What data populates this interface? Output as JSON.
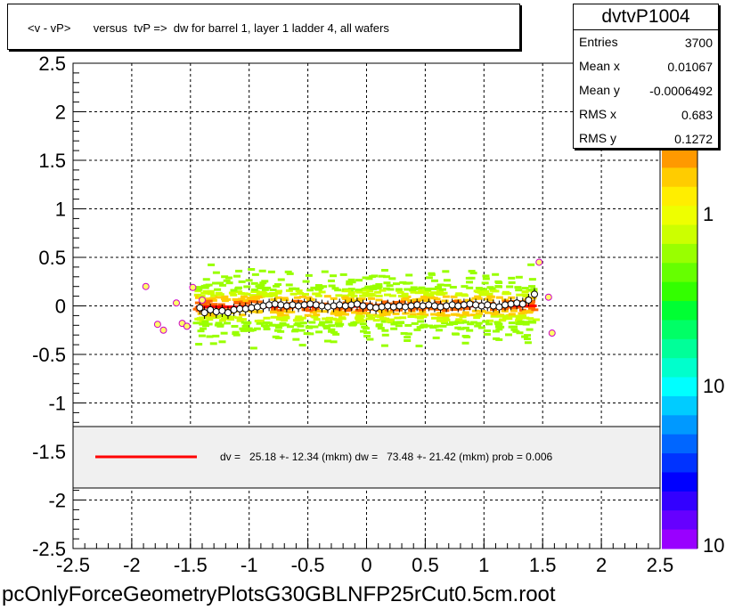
{
  "title": "<v - vP>       versus  tvP =>  dw for barrel 1, layer 1 ladder 4, all wafers",
  "stats": {
    "name": "dvtvP1004",
    "rows": [
      {
        "key": "Entries",
        "value": "3700"
      },
      {
        "key": "Mean x",
        "value": "0.01067"
      },
      {
        "key": "Mean y",
        "value": "-0.0006492"
      },
      {
        "key": "RMS x",
        "value": "0.683"
      },
      {
        "key": "RMS y",
        "value": "0.1272"
      }
    ]
  },
  "legend": {
    "text": "dv =   25.18 +- 12.34 (mkm) dw =   73.48 +- 21.42 (mkm) prob = 0.006",
    "line_color": "#ff0000"
  },
  "footer": "pcOnlyForceGeometryPlotsG30GBLNFP25rCut0.5cm.root",
  "colorbar": {
    "labels": [
      "1",
      "10",
      "10"
    ],
    "colors": [
      "#ff9900",
      "#ffcc00",
      "#ffee00",
      "#eeff00",
      "#ccff00",
      "#99ff00",
      "#66ff00",
      "#33ff00",
      "#00ff33",
      "#00ff66",
      "#00ff99",
      "#00ffcc",
      "#00ffff",
      "#00ccff",
      "#0099ff",
      "#0066ff",
      "#0033ff",
      "#0000ff",
      "#3300ff",
      "#6600ff",
      "#9900ff"
    ]
  },
  "chart_data": {
    "type": "scatter",
    "xlim": [
      -2.5,
      2.5
    ],
    "ylim": [
      -2.5,
      2.5
    ],
    "x_ticks": [
      "-2.5",
      "-2",
      "-1.5",
      "-1",
      "-0.5",
      "0",
      "0.5",
      "1",
      "1.5",
      "2",
      "2.5"
    ],
    "y_ticks": [
      "2.5",
      "2",
      "1.5",
      "1",
      "0.5",
      "0",
      "-0.5",
      "-1",
      "-1.5",
      "-2",
      "-2.5"
    ],
    "grid": true,
    "profile_points": [
      {
        "x": -1.42,
        "y": -0.02
      },
      {
        "x": -1.38,
        "y": -0.07
      },
      {
        "x": -1.33,
        "y": -0.04
      },
      {
        "x": -1.28,
        "y": -0.06
      },
      {
        "x": -1.23,
        "y": -0.05
      },
      {
        "x": -1.18,
        "y": -0.07
      },
      {
        "x": -1.13,
        "y": -0.04
      },
      {
        "x": -1.08,
        "y": -0.03
      },
      {
        "x": -1.03,
        "y": -0.03
      },
      {
        "x": -0.98,
        "y": -0.02
      },
      {
        "x": -0.93,
        "y": -0.01
      },
      {
        "x": -0.88,
        "y": 0.0
      },
      {
        "x": -0.83,
        "y": 0.01
      },
      {
        "x": -0.78,
        "y": 0.02
      },
      {
        "x": -0.73,
        "y": 0.01
      },
      {
        "x": -0.68,
        "y": 0.0
      },
      {
        "x": -0.63,
        "y": 0.01
      },
      {
        "x": -0.58,
        "y": 0.0
      },
      {
        "x": -0.53,
        "y": 0.01
      },
      {
        "x": -0.48,
        "y": 0.02
      },
      {
        "x": -0.43,
        "y": 0.01
      },
      {
        "x": -0.38,
        "y": 0.0
      },
      {
        "x": -0.33,
        "y": -0.01
      },
      {
        "x": -0.28,
        "y": 0.0
      },
      {
        "x": -0.23,
        "y": 0.01
      },
      {
        "x": -0.18,
        "y": 0.0
      },
      {
        "x": -0.13,
        "y": 0.01
      },
      {
        "x": -0.08,
        "y": 0.02
      },
      {
        "x": -0.03,
        "y": 0.0
      },
      {
        "x": 0.03,
        "y": -0.01
      },
      {
        "x": 0.08,
        "y": -0.02
      },
      {
        "x": 0.13,
        "y": -0.01
      },
      {
        "x": 0.18,
        "y": 0.0
      },
      {
        "x": 0.23,
        "y": -0.01
      },
      {
        "x": 0.28,
        "y": 0.0
      },
      {
        "x": 0.33,
        "y": -0.01
      },
      {
        "x": 0.38,
        "y": 0.0
      },
      {
        "x": 0.43,
        "y": 0.01
      },
      {
        "x": 0.48,
        "y": 0.0
      },
      {
        "x": 0.53,
        "y": 0.01
      },
      {
        "x": 0.58,
        "y": 0.0
      },
      {
        "x": 0.63,
        "y": -0.01
      },
      {
        "x": 0.68,
        "y": 0.0
      },
      {
        "x": 0.73,
        "y": 0.01
      },
      {
        "x": 0.78,
        "y": 0.0
      },
      {
        "x": 0.83,
        "y": 0.01
      },
      {
        "x": 0.88,
        "y": 0.02
      },
      {
        "x": 0.93,
        "y": 0.01
      },
      {
        "x": 0.98,
        "y": 0.0
      },
      {
        "x": 1.03,
        "y": 0.01
      },
      {
        "x": 1.08,
        "y": 0.0
      },
      {
        "x": 1.13,
        "y": -0.01
      },
      {
        "x": 1.18,
        "y": 0.01
      },
      {
        "x": 1.23,
        "y": 0.02
      },
      {
        "x": 1.28,
        "y": 0.03
      },
      {
        "x": 1.33,
        "y": 0.02
      },
      {
        "x": 1.38,
        "y": 0.06
      },
      {
        "x": 1.43,
        "y": 0.12
      }
    ],
    "outlier_points": [
      {
        "x": -1.88,
        "y": 0.2
      },
      {
        "x": -1.78,
        "y": -0.19
      },
      {
        "x": -1.73,
        "y": -0.25
      },
      {
        "x": -1.62,
        "y": 0.03
      },
      {
        "x": -1.57,
        "y": -0.18
      },
      {
        "x": -1.53,
        "y": -0.21
      },
      {
        "x": -1.48,
        "y": 0.19
      },
      {
        "x": -1.4,
        "y": 0.06
      },
      {
        "x": 1.47,
        "y": 0.45
      },
      {
        "x": 1.55,
        "y": 0.09
      },
      {
        "x": 1.58,
        "y": -0.28
      }
    ],
    "fit_line": {
      "x0": -1.45,
      "x1": 1.45,
      "y0": -0.01,
      "y1": 0.0
    }
  }
}
